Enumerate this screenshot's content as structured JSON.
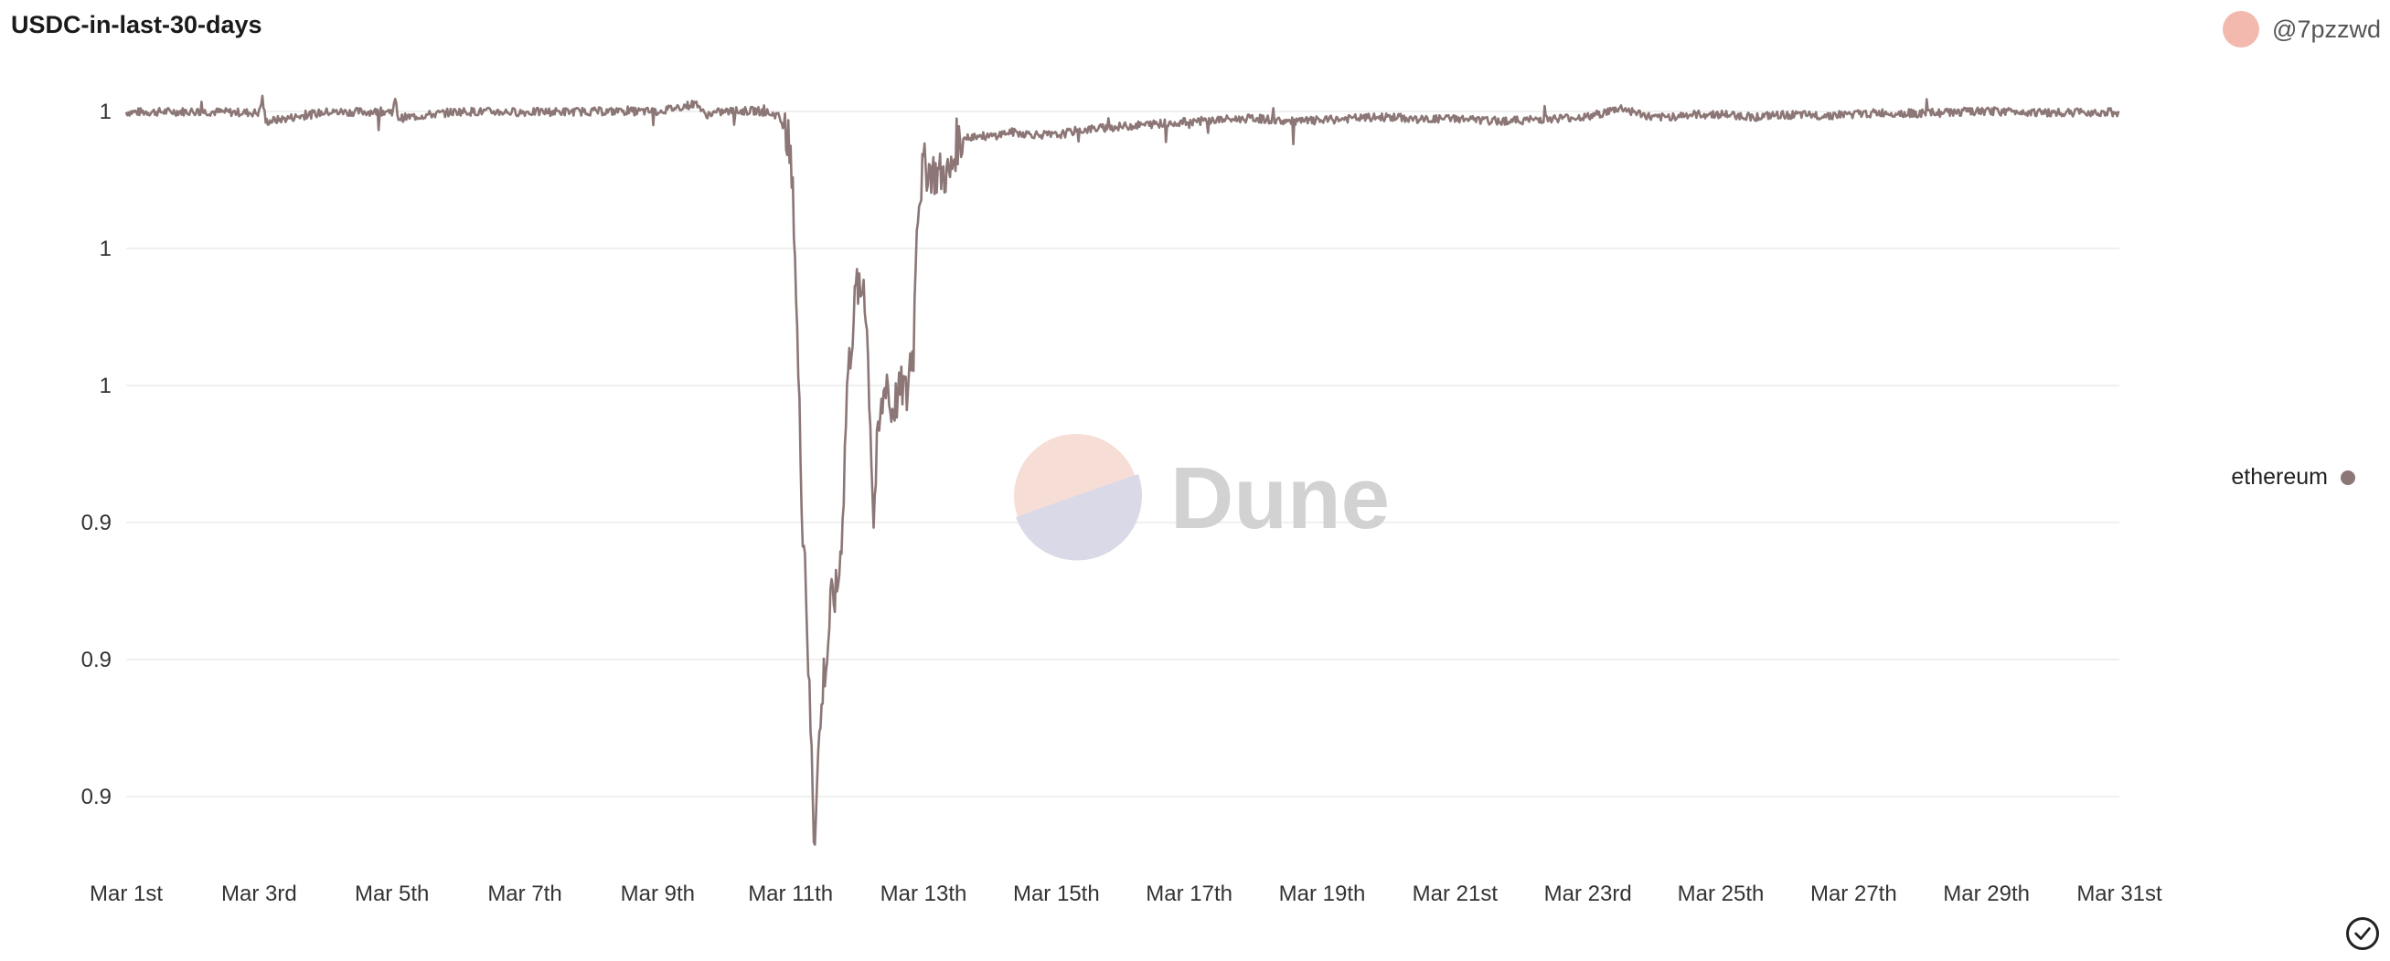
{
  "header": {
    "title": "USDC-in-last-30-days"
  },
  "author": {
    "handle": "@7pzzwd",
    "avatar_icon": "avatar-circle",
    "avatar_color": "#f3b9ae"
  },
  "watermark": {
    "text": "Dune",
    "icon": "dune-logo-icon"
  },
  "status": {
    "icon": "check-circle-icon"
  },
  "chart_data": {
    "type": "line",
    "title": "USDC-in-last-30-days",
    "xlabel": "",
    "ylabel": "",
    "x_tick_labels": [
      "Mar 1st",
      "Mar 3rd",
      "Mar 5th",
      "Mar 7th",
      "Mar 9th",
      "Mar 11th",
      "Mar 13th",
      "Mar 15th",
      "Mar 17th",
      "Mar 19th",
      "Mar 21st",
      "Mar 23rd",
      "Mar 25th",
      "Mar 27th",
      "Mar 29th",
      "Mar 31st"
    ],
    "y_tick_labels": [
      "1",
      "1",
      "1",
      "0.9",
      "0.9",
      "0.9"
    ],
    "y_tick_values": [
      1.0,
      0.98,
      0.96,
      0.94,
      0.92,
      0.9
    ],
    "ylim": [
      0.89,
      1.0
    ],
    "xlim_days": [
      1,
      31
    ],
    "grid": true,
    "legend_position": "right",
    "series": [
      {
        "name": "ethereum",
        "color": "#8c7676",
        "x_days": [
          1,
          2,
          3,
          3.05,
          3.1,
          4,
          5,
          5.05,
          5.1,
          6,
          7,
          8,
          9,
          9.6,
          9.7,
          10,
          10.5,
          10.8,
          10.95,
          11,
          11.05,
          11.08,
          11.12,
          11.18,
          11.22,
          11.28,
          11.32,
          11.36,
          11.4,
          11.45,
          11.5,
          11.55,
          11.6,
          11.7,
          11.75,
          11.8,
          11.85,
          11.95,
          12.0,
          12.05,
          12.1,
          12.15,
          12.2,
          12.25,
          12.3,
          12.35,
          12.45,
          12.5,
          12.6,
          12.7,
          12.75,
          12.8,
          12.85,
          12.9,
          13.0,
          13.1,
          13.2,
          13.3,
          13.4,
          13.5,
          13.6,
          13.8,
          14,
          14.3,
          14.6,
          15,
          15.3,
          15.6,
          16,
          16.5,
          17,
          17.5,
          18,
          18.5,
          19,
          19.5,
          20,
          20.5,
          21,
          21.5,
          22,
          22.5,
          23,
          23.5,
          24,
          24.5,
          25,
          25.5,
          26,
          26.5,
          27,
          27.5,
          28,
          28.5,
          29,
          29.5,
          30,
          30.5,
          31
        ],
        "values": [
          0.9999,
          1.0,
          0.9998,
          1.002,
          0.9985,
          0.9999,
          1.0,
          1.0015,
          0.999,
          1.0,
          0.9999,
          1.0,
          1.0,
          1.0012,
          0.9995,
          1.0,
          1.0001,
          0.9995,
          0.997,
          0.992,
          0.985,
          0.975,
          0.96,
          0.94,
          0.935,
          0.915,
          0.905,
          0.892,
          0.905,
          0.91,
          0.918,
          0.92,
          0.928,
          0.93,
          0.935,
          0.945,
          0.96,
          0.97,
          0.975,
          0.972,
          0.976,
          0.968,
          0.955,
          0.94,
          0.95,
          0.955,
          0.962,
          0.956,
          0.958,
          0.96,
          0.958,
          0.964,
          0.965,
          0.985,
          0.992,
          0.9915,
          0.9908,
          0.991,
          0.9905,
          0.9955,
          0.996,
          0.9965,
          0.9963,
          0.997,
          0.9967,
          0.9965,
          0.9972,
          0.9975,
          0.9978,
          0.9982,
          0.9985,
          0.9988,
          0.999,
          0.9985,
          0.9987,
          0.999,
          0.9992,
          0.9988,
          0.999,
          0.9986,
          0.9987,
          0.999,
          0.9992,
          1.0005,
          0.999,
          0.9995,
          0.9996,
          0.9992,
          0.9995,
          0.9994,
          0.9996,
          0.9998,
          0.9997,
          0.9999,
          1.0,
          1.0,
          0.9998,
          0.9999,
          0.9999
        ]
      }
    ]
  }
}
